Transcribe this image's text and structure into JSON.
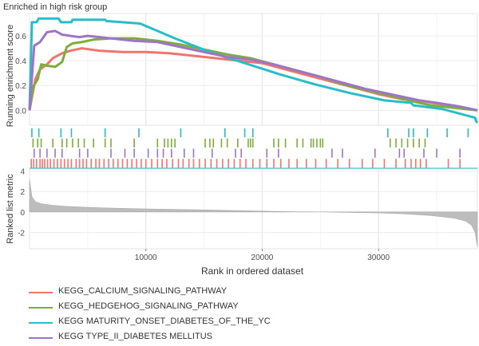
{
  "chart_data": {
    "type": "line",
    "title": "Enriched in high risk group",
    "xlabel": "Rank in ordered dataset",
    "top_ylabel": "Running enrichment score",
    "bottom_ylabel": "Ranked list metric",
    "xlim": [
      0,
      38500
    ],
    "top_ylim": [
      -0.12,
      0.78
    ],
    "bottom_ylim": [
      -3.6,
      4.2
    ],
    "x_ticks": [
      10000,
      20000,
      30000
    ],
    "top_y_ticks": [
      0.0,
      0.2,
      0.4,
      0.6
    ],
    "bottom_y_ticks": [
      4,
      2,
      0,
      -2
    ],
    "grid": true,
    "series": [
      {
        "name": "KEGG_CALCIUM_SIGNALING_PATHWAY",
        "color": "#f0756f",
        "running_es": [
          [
            0,
            0.0
          ],
          [
            500,
            0.25
          ],
          [
            900,
            0.33
          ],
          [
            1500,
            0.37
          ],
          [
            2000,
            0.42
          ],
          [
            2800,
            0.46
          ],
          [
            3500,
            0.48
          ],
          [
            4500,
            0.5
          ],
          [
            6000,
            0.48
          ],
          [
            8000,
            0.47
          ],
          [
            10000,
            0.47
          ],
          [
            12000,
            0.46
          ],
          [
            14000,
            0.44
          ],
          [
            16000,
            0.42
          ],
          [
            18000,
            0.4
          ],
          [
            20000,
            0.38
          ],
          [
            22000,
            0.33
          ],
          [
            24000,
            0.28
          ],
          [
            26000,
            0.23
          ],
          [
            28000,
            0.18
          ],
          [
            30000,
            0.13
          ],
          [
            32000,
            0.09
          ],
          [
            33000,
            0.08
          ],
          [
            34000,
            0.07
          ],
          [
            36000,
            0.04
          ],
          [
            38500,
            0.0
          ]
        ],
        "hit_positions": [
          150,
          350,
          600,
          900,
          1100,
          1300,
          1550,
          1800,
          2100,
          2400,
          2700,
          3000,
          3300,
          3600,
          4000,
          4300,
          4600,
          4900,
          5300,
          5700,
          6000,
          6400,
          6800,
          7200,
          7600,
          8000,
          8400,
          8800,
          9200,
          9600,
          10000,
          10500,
          11000,
          11400,
          11800,
          12300,
          12800,
          13200,
          13700,
          14100,
          14600,
          15100,
          15600,
          16100,
          16600,
          17100,
          17600,
          18100,
          18600,
          19200,
          19800,
          20400,
          21000,
          21600,
          22300,
          23000,
          23800,
          24600,
          25500,
          26500,
          27500,
          28600,
          29500,
          30500,
          31500,
          32300,
          32800,
          33200,
          33600,
          34100,
          36000,
          37000
        ]
      },
      {
        "name": "KEGG_HEDGEHOG_SIGNALING_PATHWAY",
        "color": "#7cae39",
        "running_es": [
          [
            0,
            0.0
          ],
          [
            300,
            0.19
          ],
          [
            700,
            0.25
          ],
          [
            1000,
            0.37
          ],
          [
            1500,
            0.36
          ],
          [
            2200,
            0.35
          ],
          [
            2800,
            0.39
          ],
          [
            3200,
            0.51
          ],
          [
            3700,
            0.54
          ],
          [
            4500,
            0.55
          ],
          [
            5500,
            0.57
          ],
          [
            7000,
            0.58
          ],
          [
            9000,
            0.58
          ],
          [
            10000,
            0.57
          ],
          [
            11000,
            0.56
          ],
          [
            13000,
            0.53
          ],
          [
            15000,
            0.49
          ],
          [
            17000,
            0.45
          ],
          [
            19000,
            0.42
          ],
          [
            21000,
            0.37
          ],
          [
            23000,
            0.32
          ],
          [
            25000,
            0.27
          ],
          [
            27000,
            0.21
          ],
          [
            29000,
            0.16
          ],
          [
            31000,
            0.12
          ],
          [
            33000,
            0.07
          ],
          [
            34500,
            0.04
          ],
          [
            36500,
            0.02
          ],
          [
            38500,
            0.0
          ]
        ],
        "hit_positions": [
          300,
          700,
          1000,
          2000,
          2800,
          3200,
          3700,
          4200,
          4700,
          5500,
          6500,
          7000,
          9000,
          11000,
          11600,
          11900,
          12200,
          12500,
          15100,
          15500,
          15800,
          16500,
          17000,
          17900,
          18800,
          19000,
          19200,
          21000,
          21400,
          22000,
          23000,
          23500,
          24200,
          24400,
          24700,
          25000,
          25200,
          31000,
          31500,
          32000,
          32500,
          33000,
          33500,
          34000
        ]
      },
      {
        "name": "KEGG MATURITY_ONSET_DIABETES_OF_THE_YC",
        "color": "#27bdc9",
        "running_es": [
          [
            0,
            0.0
          ],
          [
            200,
            0.71
          ],
          [
            600,
            0.71
          ],
          [
            800,
            0.74
          ],
          [
            2500,
            0.74
          ],
          [
            2700,
            0.71
          ],
          [
            3600,
            0.71
          ],
          [
            3700,
            0.73
          ],
          [
            6500,
            0.73
          ],
          [
            6600,
            0.72
          ],
          [
            9500,
            0.7
          ],
          [
            12500,
            0.58
          ],
          [
            15500,
            0.47
          ],
          [
            18500,
            0.38
          ],
          [
            21500,
            0.29
          ],
          [
            24500,
            0.21
          ],
          [
            27500,
            0.14
          ],
          [
            30500,
            0.08
          ],
          [
            32800,
            0.06
          ],
          [
            33000,
            0.04
          ],
          [
            35500,
            0.01
          ],
          [
            37500,
            -0.04
          ],
          [
            38300,
            -0.06
          ],
          [
            38400,
            -0.09
          ],
          [
            38500,
            -0.1
          ]
        ],
        "hit_positions": [
          200,
          800,
          2700,
          3600,
          6500,
          9400,
          13000,
          16800,
          18500,
          19200,
          30800,
          32600,
          33000,
          34200,
          35900,
          37700
        ]
      },
      {
        "name": "KEGG TYPE_II_DIABETES MELLITUS",
        "color": "#9e74c9",
        "running_es": [
          [
            0,
            0.0
          ],
          [
            400,
            0.52
          ],
          [
            900,
            0.55
          ],
          [
            1500,
            0.63
          ],
          [
            2200,
            0.64
          ],
          [
            2800,
            0.61
          ],
          [
            3500,
            0.6
          ],
          [
            4300,
            0.59
          ],
          [
            5000,
            0.6
          ],
          [
            7000,
            0.58
          ],
          [
            9000,
            0.56
          ],
          [
            11000,
            0.55
          ],
          [
            13000,
            0.51
          ],
          [
            15000,
            0.47
          ],
          [
            17000,
            0.43
          ],
          [
            19000,
            0.41
          ],
          [
            21000,
            0.37
          ],
          [
            23000,
            0.32
          ],
          [
            25000,
            0.27
          ],
          [
            27000,
            0.22
          ],
          [
            29000,
            0.17
          ],
          [
            31000,
            0.13
          ],
          [
            32500,
            0.1
          ],
          [
            33500,
            0.08
          ],
          [
            35000,
            0.06
          ],
          [
            37000,
            0.03
          ],
          [
            38500,
            0.0
          ]
        ],
        "hit_positions": [
          400,
          900,
          1500,
          2200,
          2800,
          4300,
          5000,
          7000,
          8200,
          9000,
          10200,
          11000,
          11500,
          12200,
          13300,
          14100,
          15700,
          17700,
          18200,
          20400,
          21400,
          26000,
          26900,
          29700,
          31800,
          32200,
          33900,
          35000,
          37000
        ]
      }
    ],
    "ranked_metric": [
      [
        0,
        3.2
      ],
      [
        200,
        1.5
      ],
      [
        500,
        1.0
      ],
      [
        1000,
        0.8
      ],
      [
        2000,
        0.65
      ],
      [
        3000,
        0.55
      ],
      [
        5000,
        0.45
      ],
      [
        7500,
        0.36
      ],
      [
        10000,
        0.3
      ],
      [
        12500,
        0.25
      ],
      [
        15000,
        0.2
      ],
      [
        17500,
        0.14
      ],
      [
        20000,
        0.08
      ],
      [
        22500,
        0.02
      ],
      [
        25000,
        0.0
      ],
      [
        27500,
        -0.05
      ],
      [
        30000,
        -0.1
      ],
      [
        32500,
        -0.2
      ],
      [
        34500,
        -0.35
      ],
      [
        36500,
        -0.6
      ],
      [
        37500,
        -0.9
      ],
      [
        38000,
        -1.3
      ],
      [
        38300,
        -2.0
      ],
      [
        38500,
        -3.4
      ]
    ]
  },
  "legend": [
    {
      "label": "KEGG_CALCIUM_SIGNALING_PATHWAY",
      "color": "#f0756f"
    },
    {
      "label": "KEGG_HEDGEHOG_SIGNALING_PATHWAY",
      "color": "#7cae39"
    },
    {
      "label": "KEGG MATURITY_ONSET_DIABETES_OF_THE_YC",
      "color": "#27bdc9"
    },
    {
      "label": "KEGG TYPE_II_DIABETES MELLITUS",
      "color": "#9e74c9"
    }
  ]
}
